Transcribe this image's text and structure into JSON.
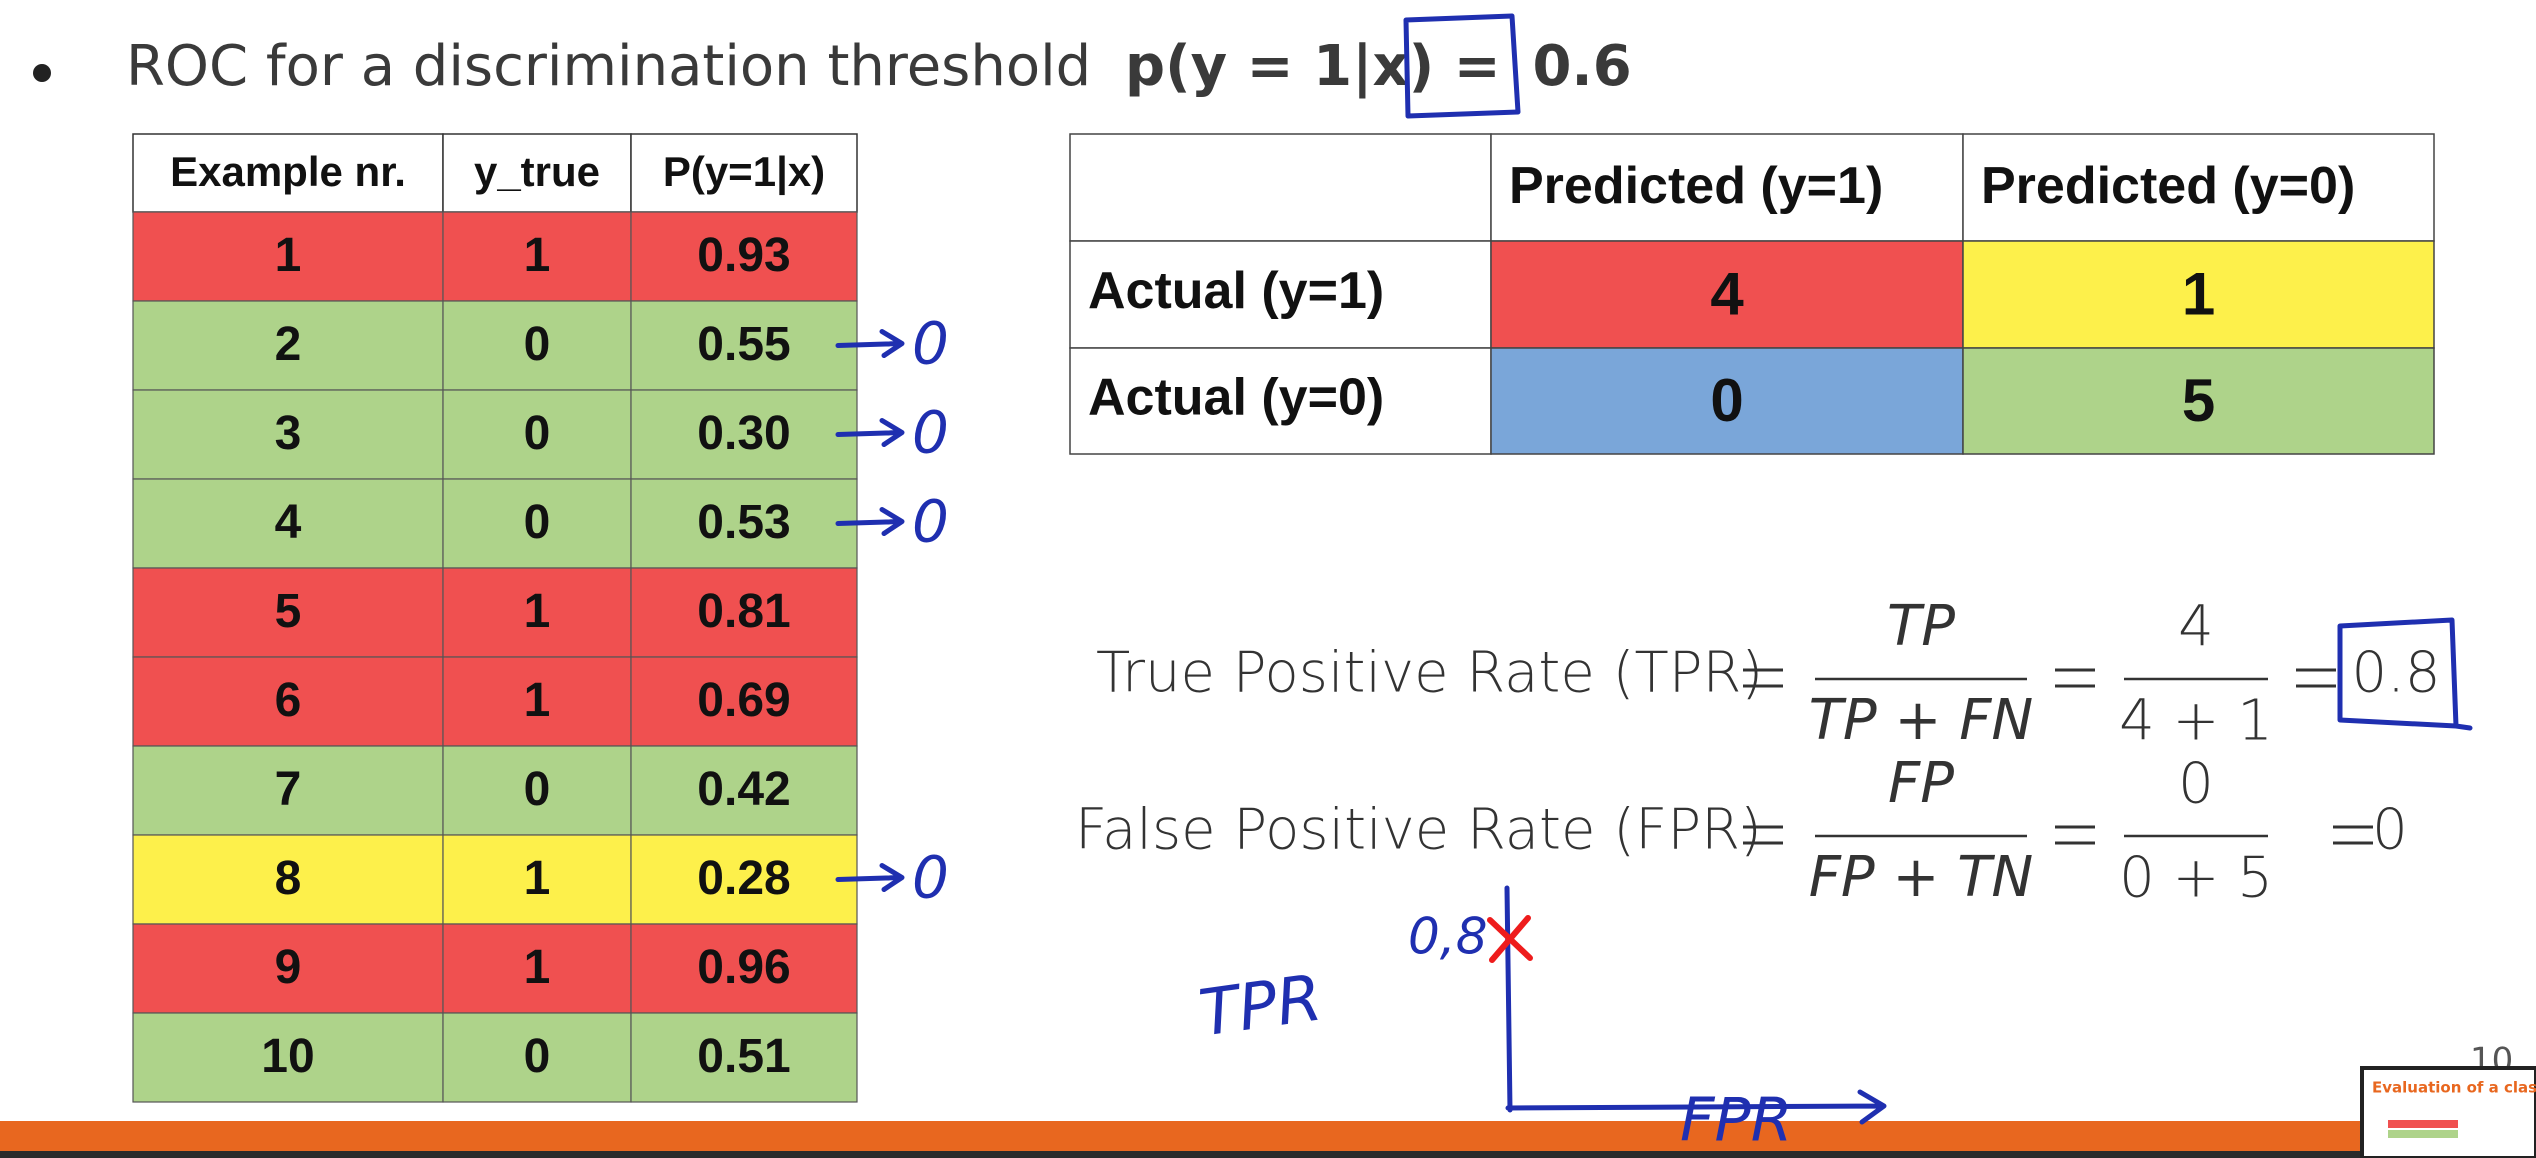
{
  "bullet": {
    "text": "ROC for a discrimination threshold",
    "expression": "p(y = 1|x) =",
    "threshold": "0.6"
  },
  "examples_table": {
    "header": [
      "Example nr.",
      "y_true",
      "P(y=1|x)"
    ],
    "rows": [
      {
        "cells": [
          "1",
          "1",
          "0.93"
        ],
        "color": "#f05050"
      },
      {
        "cells": [
          "2",
          "0",
          "0.55"
        ],
        "color": "#aed38a",
        "note": "0"
      },
      {
        "cells": [
          "3",
          "0",
          "0.30"
        ],
        "color": "#aed38a",
        "note": "0"
      },
      {
        "cells": [
          "4",
          "0",
          "0.53"
        ],
        "color": "#aed38a",
        "note": "0"
      },
      {
        "cells": [
          "5",
          "1",
          "0.81"
        ],
        "color": "#f05050"
      },
      {
        "cells": [
          "6",
          "1",
          "0.69"
        ],
        "color": "#f05050"
      },
      {
        "cells": [
          "7",
          "0",
          "0.42"
        ],
        "color": "#aed38a"
      },
      {
        "cells": [
          "8",
          "1",
          "0.28"
        ],
        "color": "#fdf04b",
        "note": "0"
      },
      {
        "cells": [
          "9",
          "1",
          "0.96"
        ],
        "color": "#f05050"
      },
      {
        "cells": [
          "10",
          "0",
          "0.51"
        ],
        "color": "#aed38a"
      }
    ]
  },
  "confusion_matrix": {
    "column_headers": [
      "Predicted (y=1)",
      "Predicted (y=0)"
    ],
    "rows": [
      {
        "label": "Actual (y=1)",
        "cells": [
          "4",
          "1"
        ],
        "colors": [
          "#f05050",
          "#fdf04b"
        ]
      },
      {
        "label": "Actual (y=0)",
        "cells": [
          "0",
          "5"
        ],
        "colors": [
          "#7aa6d9",
          "#aed38a"
        ]
      }
    ]
  },
  "formulas": [
    {
      "label": "True Positive Rate (TPR)",
      "numerator": "TP",
      "denominator": "TP + FN",
      "value_numerator": "4",
      "value_denominator": "4 + 1",
      "result": "0.8",
      "boxed": true
    },
    {
      "label": "False Positive Rate (FPR)",
      "numerator": "FP",
      "denominator": "FP + TN",
      "value_numerator": "0",
      "value_denominator": "0 + 5",
      "result": "0",
      "boxed": false
    }
  ],
  "sketch": {
    "y_axis": "TPR",
    "x_axis": "FPR",
    "point_label": "0,8"
  },
  "footer": {
    "slide_number": "10",
    "thumbnail_title": "Evaluation of a classifier"
  }
}
